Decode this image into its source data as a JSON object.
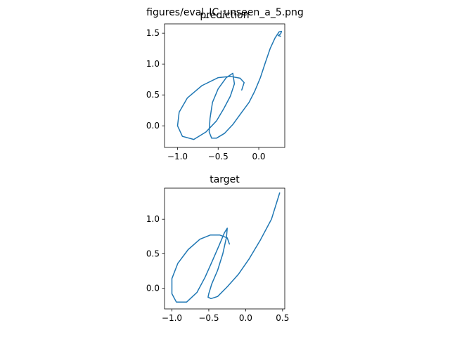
{
  "figure_title": "figures/eval_IC_unseen_a_5.png",
  "line_color": "#1f77b4",
  "chart_data": [
    {
      "type": "line",
      "title": "prediction",
      "xlabel": "",
      "ylabel": "",
      "xlim": [
        -1.16,
        0.32
      ],
      "ylim": [
        -0.35,
        1.65
      ],
      "xticks": [
        -1.0,
        -0.5,
        0.0
      ],
      "xtick_labels": [
        "−1.0",
        "−0.5",
        "0.0"
      ],
      "yticks": [
        0.0,
        0.5,
        1.0,
        1.5
      ],
      "ytick_labels": [
        "0.0",
        "0.5",
        "1.0",
        "1.5"
      ],
      "grid": false,
      "series": [
        {
          "x": [
            -0.21,
            -0.18,
            -0.23,
            -0.35,
            -0.5,
            -0.7,
            -0.88,
            -0.98,
            -1.0,
            -0.94,
            -0.8,
            -0.65,
            -0.52,
            -0.43,
            -0.35,
            -0.3,
            -0.32,
            -0.4,
            -0.5,
            -0.57,
            -0.6,
            -0.61,
            -0.58,
            -0.52,
            -0.42,
            -0.32,
            -0.22,
            -0.12,
            -0.05,
            0.02,
            0.08,
            0.14,
            0.2,
            0.25,
            0.28,
            0.27,
            0.24,
            0.27
          ],
          "y": [
            0.58,
            0.7,
            0.77,
            0.8,
            0.78,
            0.65,
            0.45,
            0.22,
            0.0,
            -0.17,
            -0.22,
            -0.1,
            0.08,
            0.28,
            0.48,
            0.68,
            0.85,
            0.78,
            0.6,
            0.38,
            0.12,
            -0.1,
            -0.2,
            -0.2,
            -0.12,
            0.02,
            0.2,
            0.38,
            0.56,
            0.78,
            1.02,
            1.25,
            1.42,
            1.52,
            1.53,
            1.49,
            1.46,
            1.45
          ]
        }
      ]
    },
    {
      "type": "line",
      "title": "target",
      "xlabel": "",
      "ylabel": "",
      "xlim": [
        -1.1,
        0.53
      ],
      "ylim": [
        -0.3,
        1.45
      ],
      "xticks": [
        -1.0,
        -0.5,
        0.0,
        0.5
      ],
      "xtick_labels": [
        "−1.0",
        "−0.5",
        "0.0",
        "0.5"
      ],
      "yticks": [
        0.0,
        0.5,
        1.0
      ],
      "ytick_labels": [
        "0.0",
        "0.5",
        "1.0"
      ],
      "grid": false,
      "series": [
        {
          "x": [
            -0.22,
            -0.25,
            -0.35,
            -0.48,
            -0.62,
            -0.78,
            -0.92,
            -1.0,
            -1.0,
            -0.94,
            -0.8,
            -0.66,
            -0.55,
            -0.45,
            -0.36,
            -0.29,
            -0.25,
            -0.26,
            -0.31,
            -0.38,
            -0.46,
            -0.5,
            -0.51,
            -0.47,
            -0.38,
            -0.25,
            -0.1,
            0.05,
            0.2,
            0.35,
            0.46
          ],
          "y": [
            0.64,
            0.73,
            0.77,
            0.77,
            0.71,
            0.56,
            0.36,
            0.14,
            -0.08,
            -0.2,
            -0.2,
            -0.06,
            0.16,
            0.4,
            0.62,
            0.8,
            0.87,
            0.74,
            0.5,
            0.26,
            0.06,
            -0.08,
            -0.13,
            -0.15,
            -0.12,
            0.02,
            0.2,
            0.43,
            0.7,
            1.0,
            1.38
          ]
        }
      ]
    }
  ]
}
